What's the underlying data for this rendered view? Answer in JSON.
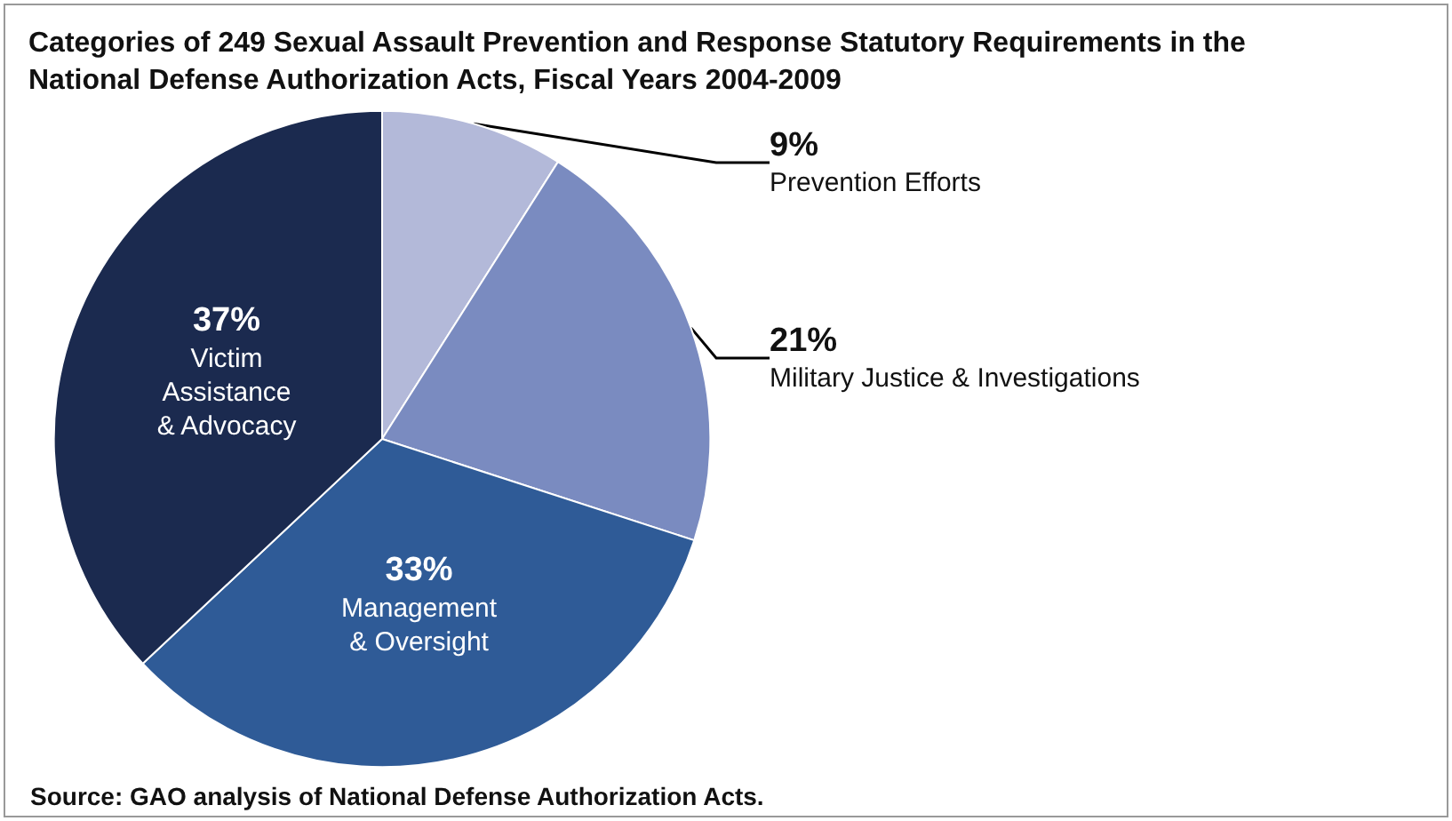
{
  "chart_data": {
    "type": "pie",
    "title": "Categories of 249 Sexual Assault Prevention and Response Statutory Requirements in the National Defense Authorization Acts, Fiscal Years 2004-2009",
    "categories": [
      "Prevention Efforts",
      "Military Justice & Investigations",
      "Management & Oversight",
      "Victim Assistance & Advocacy"
    ],
    "values": [
      9,
      21,
      33,
      37
    ],
    "value_labels": [
      "9%",
      "21%",
      "33%",
      "37%"
    ],
    "colors": [
      "#b3b9d9",
      "#7a8bc0",
      "#2f5b97",
      "#1b2a4f"
    ],
    "legend": false,
    "annotations": [
      "Source: GAO analysis of National Defense Authorization Acts."
    ]
  }
}
